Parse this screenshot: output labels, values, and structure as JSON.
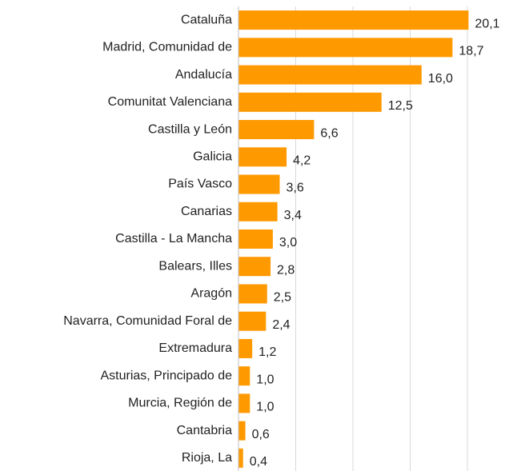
{
  "chart_data": {
    "type": "bar",
    "orientation": "horizontal",
    "categories": [
      "Cataluña",
      "Madrid, Comunidad de",
      "Andalucía",
      "Comunitat Valenciana",
      "Castilla y León",
      "Galicia",
      "País Vasco",
      "Canarias",
      "Castilla - La Mancha",
      "Balears, Illes",
      "Aragón",
      "Navarra, Comunidad Foral de",
      "Extremadura",
      "Asturias, Principado de",
      "Murcia, Región de",
      "Cantabria",
      "Rioja, La"
    ],
    "values": [
      20.1,
      18.7,
      16.0,
      12.5,
      6.6,
      4.2,
      3.6,
      3.4,
      3.0,
      2.8,
      2.5,
      2.4,
      1.2,
      1.0,
      1.0,
      0.6,
      0.4
    ],
    "value_labels": [
      "20,1",
      "18,7",
      "16,0",
      "12,5",
      "6,6",
      "4,2",
      "3,6",
      "3,4",
      "3,0",
      "2,8",
      "2,5",
      "2,4",
      "1,2",
      "1,0",
      "1,0",
      "0,6",
      "0,4"
    ],
    "color": "#ff9900",
    "xlim": [
      0,
      20
    ],
    "xticks": [
      0,
      5,
      10,
      15,
      20
    ],
    "grid": true
  }
}
